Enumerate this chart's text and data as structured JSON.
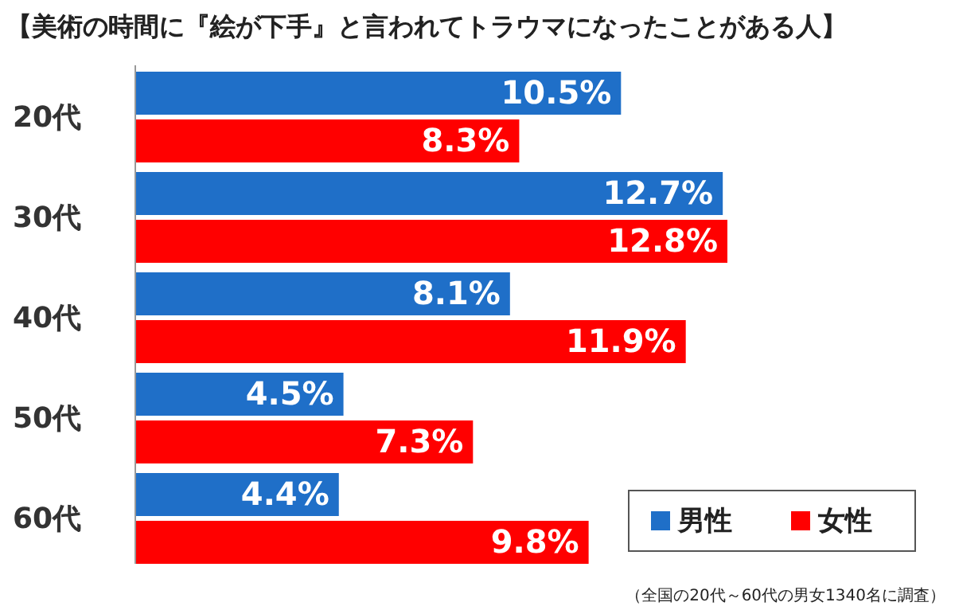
{
  "chart_data": {
    "type": "bar",
    "orientation": "horizontal",
    "title": "【美術の時間に『絵が下手』と言われてトラウマになったことがある人】",
    "categories": [
      "20代",
      "30代",
      "40代",
      "50代",
      "60代"
    ],
    "series": [
      {
        "name": "男性",
        "color": "#1f6fc8",
        "values": [
          10.5,
          12.7,
          8.1,
          4.5,
          4.4
        ],
        "value_labels": [
          "10.5%",
          "12.7%",
          "8.1%",
          "4.5%",
          "4.4%"
        ]
      },
      {
        "name": "女性",
        "color": "#ff0000",
        "values": [
          8.3,
          12.8,
          11.9,
          7.3,
          9.8
        ],
        "value_labels": [
          "8.3%",
          "12.8%",
          "11.9%",
          "7.3%",
          "9.8%"
        ]
      }
    ],
    "legend": "bottom right",
    "annotations": [
      "（全国の20代～60代の男女1340名に調査）"
    ]
  }
}
